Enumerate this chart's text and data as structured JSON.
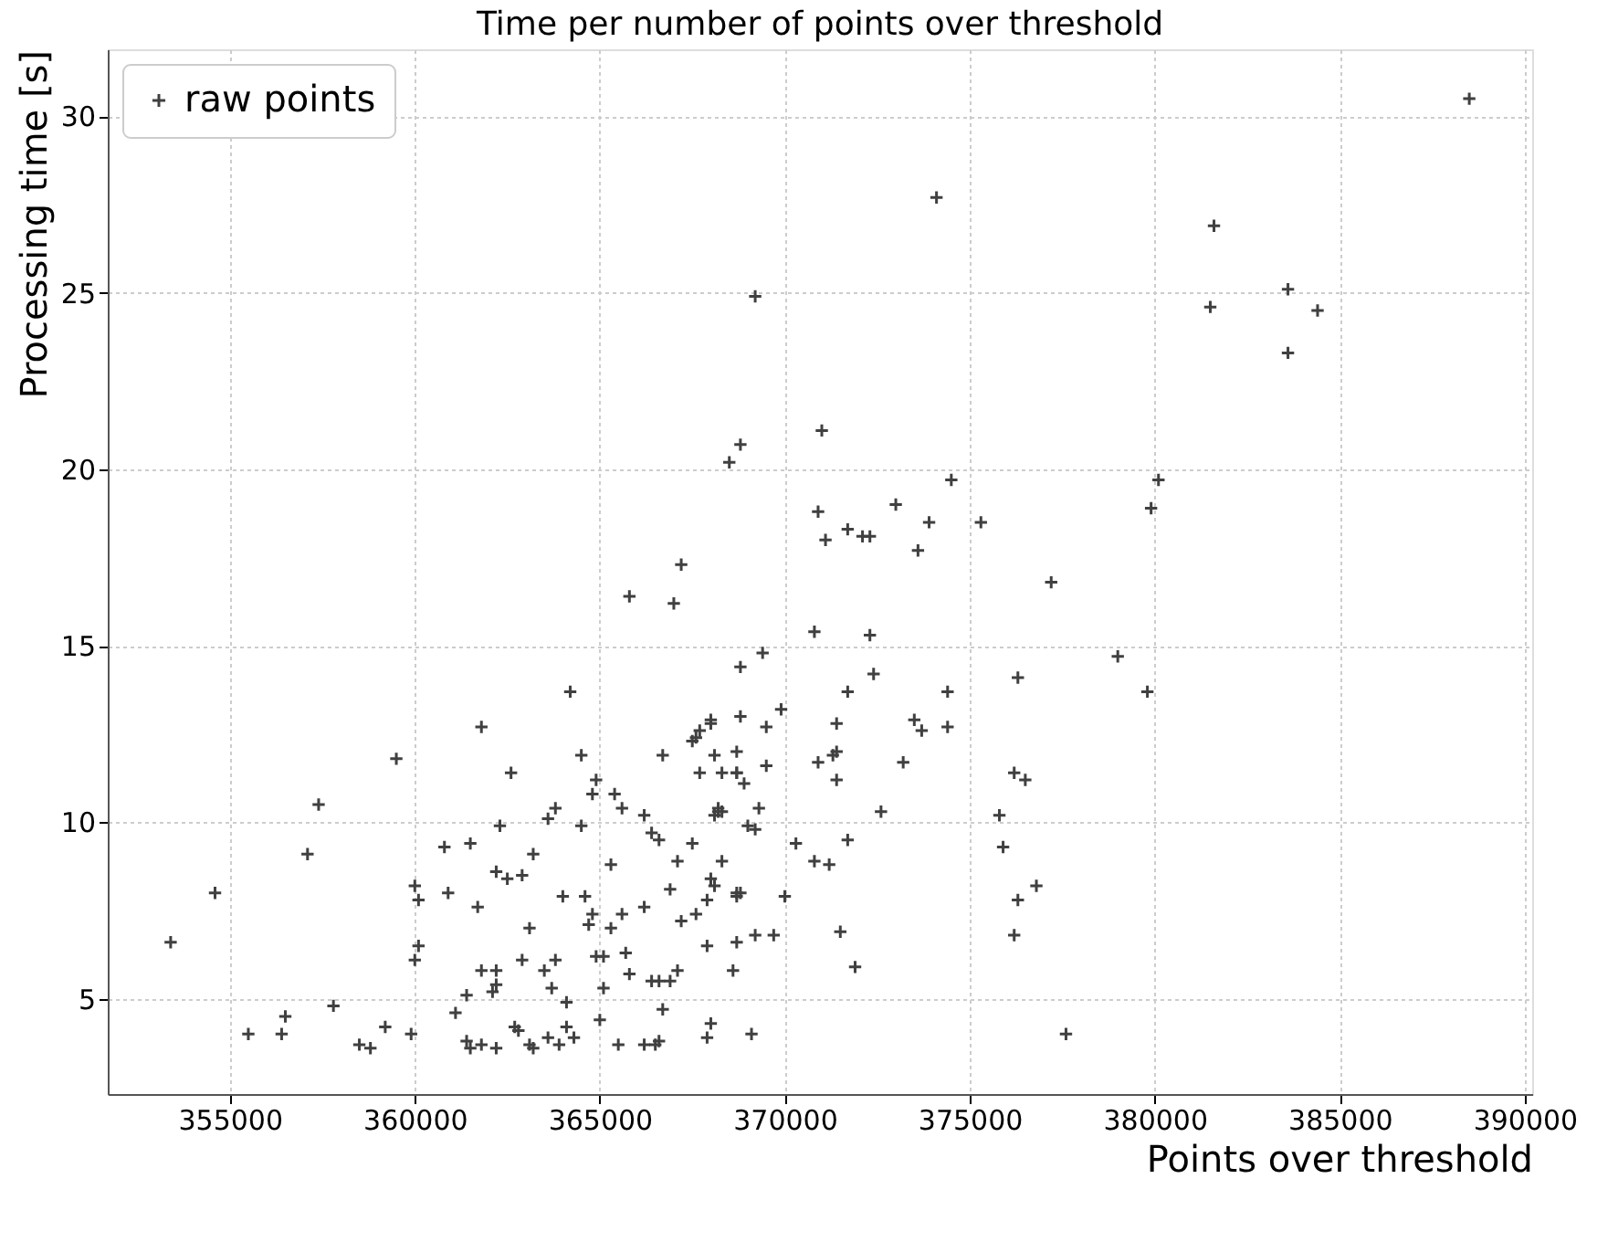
{
  "chart_data": {
    "type": "scatter",
    "title": "Time per number of points over threshold",
    "xlabel": "Points over threshold",
    "ylabel": "Processing time [s]",
    "xlim": [
      351700,
      390200
    ],
    "ylim": [
      2.3,
      31.9
    ],
    "xticks": [
      355000,
      360000,
      365000,
      370000,
      375000,
      380000,
      385000,
      390000
    ],
    "yticks": [
      5,
      10,
      15,
      20,
      25,
      30
    ],
    "grid": true,
    "legend": "top left",
    "marker": "cross",
    "series": [
      {
        "name": "raw points",
        "color": "#404040",
        "x": [
          353400,
          354600,
          355500,
          356400,
          356500,
          357100,
          357400,
          357800,
          358500,
          358800,
          359200,
          359500,
          359900,
          360000,
          360100,
          360000,
          360100,
          360800,
          360900,
          361100,
          361500,
          361400,
          361400,
          361500,
          361700,
          361800,
          361800,
          361800,
          362100,
          362200,
          362200,
          362200,
          362300,
          362200,
          362500,
          362600,
          362800,
          362700,
          362900,
          362900,
          363200,
          363100,
          363100,
          363200,
          363500,
          363600,
          363700,
          363600,
          363800,
          363800,
          364000,
          363900,
          364200,
          364100,
          364100,
          364300,
          364500,
          364500,
          364600,
          364700,
          364800,
          364900,
          364800,
          364900,
          365000,
          365100,
          365100,
          365300,
          365300,
          365400,
          365500,
          365600,
          365600,
          365700,
          365800,
          365800,
          366200,
          366200,
          366200,
          366400,
          366500,
          366600,
          366400,
          366600,
          366600,
          366700,
          366700,
          366900,
          366900,
          367000,
          367100,
          367100,
          367200,
          367200,
          367500,
          367600,
          367500,
          367600,
          367700,
          367700,
          367900,
          367900,
          367900,
          368000,
          368000,
          368000,
          368000,
          368100,
          368100,
          368100,
          368200,
          368200,
          368300,
          368300,
          368300,
          368500,
          368600,
          368700,
          368700,
          368700,
          368700,
          368800,
          368800,
          368700,
          368800,
          368700,
          368800,
          368900,
          369000,
          369100,
          369200,
          369200,
          369300,
          369200,
          369400,
          369500,
          369500,
          369700,
          369900,
          370000,
          370300,
          370800,
          370800,
          370900,
          370900,
          371000,
          371100,
          371200,
          371300,
          371400,
          371400,
          371400,
          371500,
          371700,
          371700,
          371700,
          371900,
          372100,
          372300,
          372300,
          372400,
          372600,
          373000,
          373200,
          373500,
          373600,
          373700,
          373900,
          374100,
          374400,
          374400,
          374500,
          375300,
          375800,
          375900,
          376200,
          376200,
          376300,
          376300,
          376500,
          376800,
          377200,
          377600,
          379000,
          379800,
          379900,
          380100,
          381500,
          381600,
          383600,
          383600,
          384400,
          388500
        ],
        "values": [
          6.6,
          8.0,
          4.0,
          4.0,
          4.5,
          9.1,
          10.5,
          4.8,
          3.7,
          3.6,
          4.2,
          11.8,
          4.0,
          8.2,
          7.8,
          6.1,
          6.5,
          9.3,
          8.0,
          4.6,
          9.4,
          5.1,
          3.8,
          3.6,
          7.6,
          12.7,
          5.8,
          3.7,
          5.2,
          8.6,
          5.8,
          5.4,
          9.9,
          3.6,
          8.4,
          11.4,
          4.1,
          4.2,
          8.5,
          6.1,
          9.1,
          7.0,
          3.7,
          3.6,
          5.8,
          10.1,
          5.3,
          3.9,
          10.4,
          6.1,
          7.9,
          3.7,
          13.7,
          4.9,
          4.2,
          3.9,
          11.9,
          9.9,
          7.9,
          7.1,
          7.4,
          11.2,
          10.8,
          6.2,
          4.4,
          6.2,
          5.3,
          8.8,
          7.0,
          10.8,
          3.7,
          10.4,
          7.4,
          6.3,
          5.7,
          16.4,
          7.6,
          10.2,
          3.7,
          9.7,
          3.7,
          3.8,
          5.5,
          9.5,
          5.5,
          11.9,
          4.7,
          5.5,
          8.1,
          16.2,
          5.8,
          8.9,
          17.3,
          7.2,
          9.4,
          7.4,
          12.3,
          12.4,
          12.6,
          11.4,
          3.9,
          6.5,
          7.8,
          4.3,
          12.8,
          12.9,
          8.4,
          8.2,
          10.2,
          11.9,
          10.4,
          10.3,
          11.4,
          8.9,
          10.3,
          20.2,
          5.8,
          7.9,
          11.4,
          8.0,
          12.0,
          13.0,
          14.4,
          11.4,
          8.0,
          6.6,
          20.7,
          11.1,
          9.9,
          4.0,
          24.9,
          9.8,
          10.4,
          6.8,
          14.8,
          11.6,
          12.7,
          6.8,
          13.2,
          7.9,
          9.4,
          15.4,
          8.9,
          18.8,
          11.7,
          21.1,
          18.0,
          8.8,
          11.9,
          12.0,
          12.8,
          11.2,
          6.9,
          9.5,
          13.7,
          18.3,
          5.9,
          18.1,
          18.1,
          15.3,
          14.2,
          10.3,
          19.0,
          11.7,
          12.9,
          17.7,
          12.6,
          18.5,
          27.7,
          13.7,
          12.7,
          19.7,
          18.5,
          10.2,
          9.3,
          6.8,
          11.4,
          14.1,
          7.8,
          11.2,
          8.2,
          16.8,
          4.0,
          14.7,
          13.7,
          18.9,
          19.7,
          24.6,
          26.9,
          25.1,
          23.3,
          24.5,
          30.5
        ]
      }
    ]
  }
}
